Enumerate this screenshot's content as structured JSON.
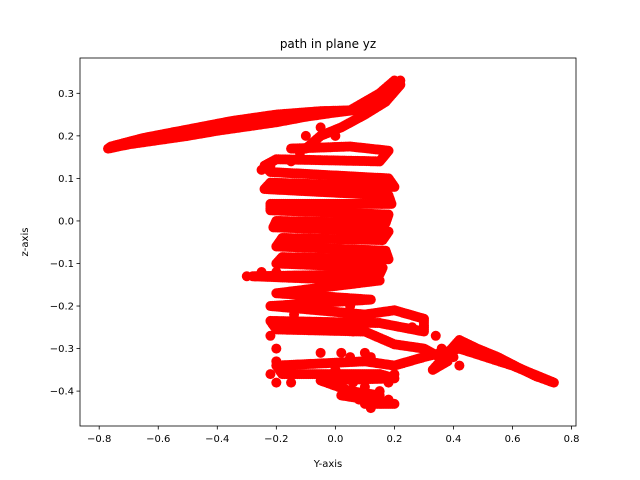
{
  "chart_data": {
    "type": "scatter",
    "title": "path in plane yz",
    "xlabel": "Y-axis",
    "ylabel": "z-axis",
    "xlim": [
      -0.865,
      0.815
    ],
    "ylim": [
      -0.482,
      0.383
    ],
    "xticks": [
      -0.8,
      -0.6,
      -0.4,
      -0.2,
      0.0,
      0.2,
      0.4,
      0.6,
      0.8
    ],
    "xtick_labels": [
      "−0.8",
      "−0.6",
      "−0.4",
      "−0.2",
      "0.0",
      "0.2",
      "0.4",
      "0.6",
      "0.8"
    ],
    "yticks": [
      -0.4,
      -0.3,
      -0.2,
      -0.1,
      0.0,
      0.1,
      0.2,
      0.3
    ],
    "ytick_labels": [
      "−0.4",
      "−0.3",
      "−0.2",
      "−0.1",
      "0.0",
      "0.1",
      "0.2",
      "0.3"
    ],
    "grid": false,
    "marker_color": "#ff0000",
    "series": [
      {
        "path": [
          [
            0.22,
            0.33
          ],
          [
            0.16,
            0.3
          ],
          [
            0.11,
            0.28
          ],
          [
            0.06,
            0.26
          ],
          [
            0.0,
            0.255
          ],
          [
            -0.1,
            0.245
          ],
          [
            -0.2,
            0.232
          ],
          [
            -0.3,
            0.222
          ],
          [
            -0.4,
            0.212
          ],
          [
            -0.5,
            0.2
          ],
          [
            -0.6,
            0.19
          ],
          [
            -0.7,
            0.18
          ],
          [
            -0.77,
            0.17
          ],
          [
            -0.76,
            0.175
          ],
          [
            -0.65,
            0.195
          ],
          [
            -0.5,
            0.215
          ],
          [
            -0.35,
            0.235
          ],
          [
            -0.2,
            0.25
          ],
          [
            -0.05,
            0.258
          ],
          [
            0.05,
            0.26
          ],
          [
            0.15,
            0.3
          ],
          [
            0.2,
            0.33
          ],
          [
            0.22,
            0.32
          ],
          [
            0.17,
            0.28
          ],
          [
            0.1,
            0.25
          ],
          [
            0.02,
            0.22
          ],
          [
            -0.05,
            0.2
          ],
          [
            -0.1,
            0.17
          ],
          [
            -0.15,
            0.17
          ],
          [
            0.05,
            0.175
          ],
          [
            0.18,
            0.165
          ],
          [
            0.15,
            0.14
          ],
          [
            -0.2,
            0.145
          ],
          [
            -0.24,
            0.13
          ],
          [
            -0.22,
            0.115
          ],
          [
            0.18,
            0.1
          ],
          [
            0.2,
            0.08
          ],
          [
            -0.22,
            0.09
          ],
          [
            -0.24,
            0.075
          ],
          [
            0.18,
            0.06
          ],
          [
            0.19,
            0.04
          ],
          [
            -0.22,
            0.04
          ],
          [
            -0.22,
            0.025
          ],
          [
            0.18,
            0.015
          ],
          [
            0.17,
            -0.005
          ],
          [
            -0.2,
            0.0
          ],
          [
            -0.21,
            -0.015
          ],
          [
            0.18,
            -0.025
          ],
          [
            0.16,
            -0.045
          ],
          [
            -0.18,
            -0.04
          ],
          [
            -0.2,
            -0.06
          ],
          [
            0.17,
            -0.07
          ],
          [
            0.18,
            -0.09
          ],
          [
            -0.18,
            -0.085
          ],
          [
            -0.2,
            -0.1
          ],
          [
            0.16,
            -0.11
          ],
          [
            0.15,
            -0.125
          ],
          [
            -0.28,
            -0.13
          ],
          [
            -0.1,
            -0.135
          ],
          [
            0.15,
            -0.14
          ],
          [
            -0.2,
            -0.17
          ],
          [
            0.12,
            -0.185
          ],
          [
            -0.22,
            -0.2
          ],
          [
            0.1,
            -0.22
          ],
          [
            0.2,
            -0.21
          ],
          [
            0.3,
            -0.23
          ],
          [
            0.3,
            -0.26
          ],
          [
            0.15,
            -0.24
          ],
          [
            -0.22,
            -0.235
          ],
          [
            -0.2,
            -0.255
          ],
          [
            0.1,
            -0.26
          ],
          [
            0.2,
            -0.29
          ],
          [
            0.3,
            -0.3
          ],
          [
            0.38,
            -0.33
          ],
          [
            0.33,
            -0.35
          ],
          [
            0.42,
            -0.28
          ],
          [
            0.48,
            -0.3
          ],
          [
            0.55,
            -0.32
          ],
          [
            0.62,
            -0.345
          ],
          [
            0.68,
            -0.365
          ],
          [
            0.74,
            -0.38
          ],
          [
            0.6,
            -0.34
          ],
          [
            0.42,
            -0.3
          ],
          [
            0.3,
            -0.32
          ],
          [
            0.2,
            -0.34
          ],
          [
            0.1,
            -0.33
          ],
          [
            -0.2,
            -0.34
          ],
          [
            -0.18,
            -0.36
          ],
          [
            0.15,
            -0.36
          ],
          [
            0.2,
            -0.37
          ],
          [
            -0.05,
            -0.375
          ],
          [
            0.05,
            -0.4
          ],
          [
            0.15,
            -0.41
          ],
          [
            0.1,
            -0.43
          ],
          [
            0.2,
            -0.43
          ],
          [
            0.02,
            -0.41
          ]
        ],
        "scatter": [
          [
            -0.3,
            -0.13
          ],
          [
            -0.25,
            -0.13
          ],
          [
            -0.22,
            -0.13
          ],
          [
            -0.2,
            -0.12
          ],
          [
            -0.2,
            -0.24
          ],
          [
            -0.22,
            -0.27
          ],
          [
            -0.2,
            -0.3
          ],
          [
            -0.2,
            -0.33
          ],
          [
            -0.22,
            -0.36
          ],
          [
            -0.2,
            -0.38
          ],
          [
            -0.18,
            -0.35
          ],
          [
            -0.15,
            -0.38
          ],
          [
            -0.25,
            0.12
          ],
          [
            -0.22,
            0.13
          ],
          [
            -0.15,
            0.14
          ],
          [
            -0.12,
            0.16
          ],
          [
            -0.1,
            0.2
          ],
          [
            -0.05,
            0.22
          ],
          [
            0.0,
            0.2
          ],
          [
            -0.08,
            0.18
          ],
          [
            0.02,
            -0.31
          ],
          [
            0.05,
            -0.32
          ],
          [
            0.12,
            -0.32
          ],
          [
            0.0,
            -0.35
          ],
          [
            0.05,
            -0.2
          ],
          [
            0.07,
            -0.22
          ],
          [
            0.08,
            -0.24
          ],
          [
            0.06,
            -0.26
          ],
          [
            0.06,
            -0.38
          ],
          [
            0.1,
            -0.39
          ],
          [
            0.18,
            -0.42
          ],
          [
            0.12,
            -0.44
          ],
          [
            0.08,
            -0.42
          ],
          [
            0.15,
            -0.4
          ],
          [
            0.2,
            -0.36
          ],
          [
            0.18,
            -0.38
          ],
          [
            0.34,
            -0.27
          ],
          [
            0.36,
            -0.3
          ],
          [
            0.38,
            -0.32
          ],
          [
            0.26,
            -0.25
          ],
          [
            0.4,
            -0.32
          ],
          [
            0.42,
            -0.34
          ],
          [
            0.35,
            -0.34
          ],
          [
            -0.12,
            -0.2
          ],
          [
            -0.14,
            -0.22
          ],
          [
            -0.05,
            -0.31
          ],
          [
            0.1,
            -0.31
          ],
          [
            -0.25,
            -0.12
          ]
        ]
      }
    ]
  }
}
